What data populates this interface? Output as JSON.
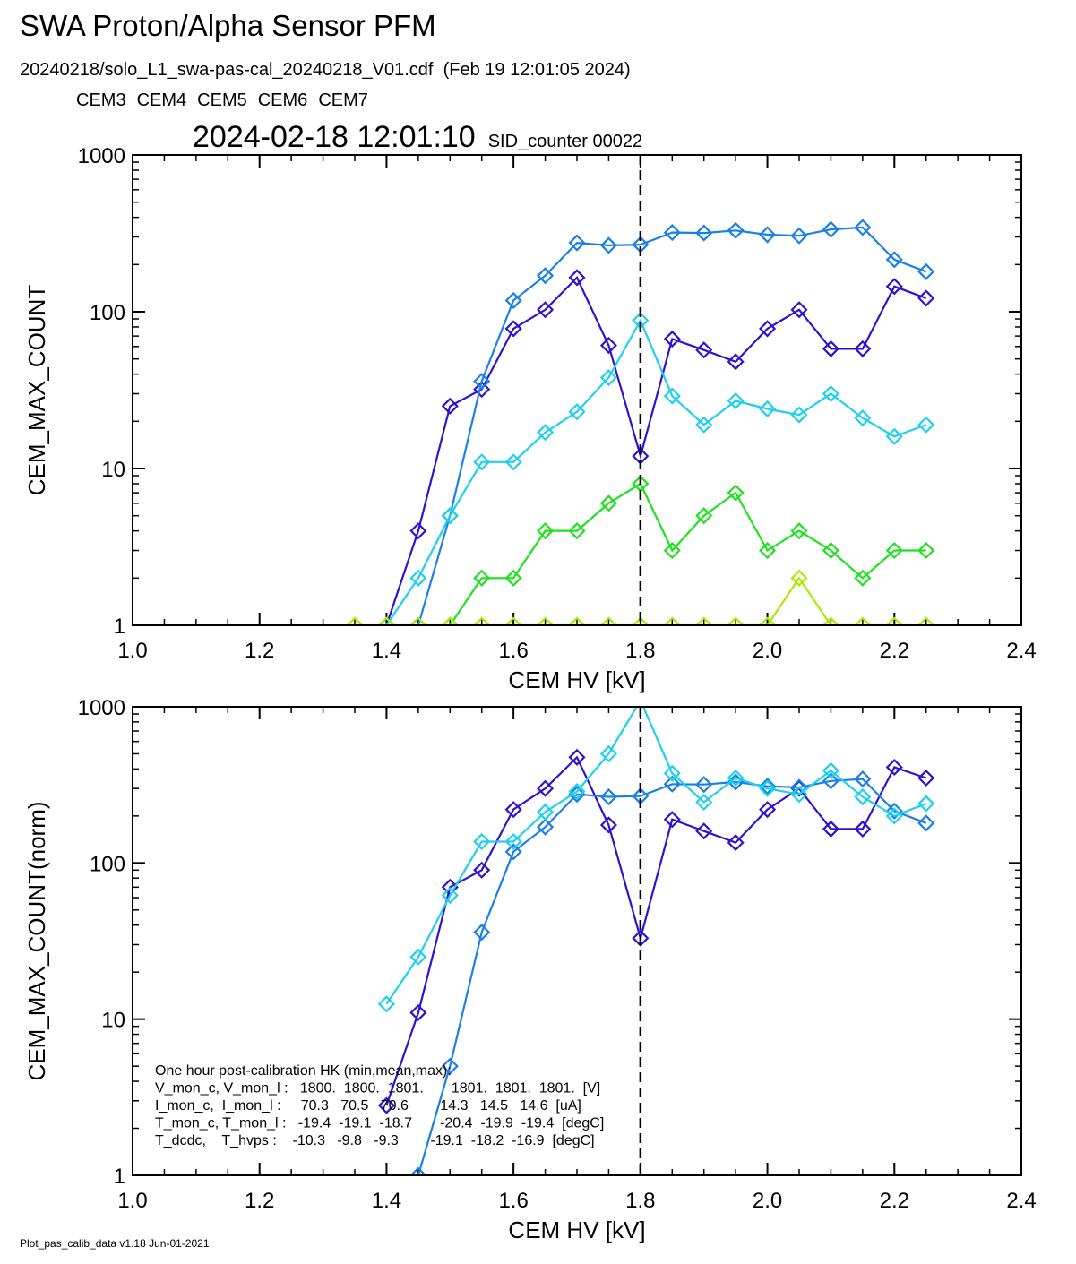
{
  "header": {
    "title": "SWA Proton/Alpha Sensor PFM",
    "subtitle": "20240218/solo_L1_swa-pas-cal_20240218_V01.cdf  (Feb 19 12:01:05 2024)",
    "timestamp": "2024-02-18 12:01:10",
    "counter": "SID_counter 00022",
    "footer": "Plot_pas_calib_data v1.18 Jun-01-2021"
  },
  "chart_data": [
    {
      "type": "line",
      "ylog": true,
      "marker": "diamond",
      "xlabel": "CEM HV [kV]",
      "ylabel": "CEM_MAX_COUNT",
      "x": [
        1.35,
        1.4,
        1.45,
        1.5,
        1.55,
        1.6,
        1.65,
        1.7,
        1.75,
        1.8,
        1.85,
        1.9,
        1.95,
        2.0,
        2.05,
        2.1,
        2.15,
        2.2,
        2.25
      ],
      "xlim": [
        1.0,
        2.4
      ],
      "xticks": [
        {
          "value": 1.0,
          "label": "1.0"
        },
        1.2,
        1.4,
        1.6,
        1.8,
        {
          "value": 2.0,
          "label": "2.0"
        },
        2.2,
        2.4
      ],
      "ylim": [
        1,
        1000
      ],
      "yticks": [
        1,
        10,
        100,
        1000
      ],
      "vline": 1.8,
      "series": [
        {
          "name": "CEM3",
          "color": "#2e12d2",
          "values": [
            null,
            1,
            4,
            25,
            32,
            78,
            103,
            165,
            61,
            12,
            67,
            57,
            48,
            78,
            103,
            58,
            58,
            145,
            122
          ]
        },
        {
          "name": "CEM4",
          "color": "#1a80e8",
          "values": [
            null,
            null,
            1,
            5,
            36,
            118,
            170,
            275,
            265,
            268,
            320,
            318,
            330,
            310,
            305,
            335,
            345,
            215,
            180
          ]
        },
        {
          "name": "CEM5",
          "color": "#1ed0ee",
          "values": [
            null,
            1,
            2,
            5,
            11,
            11,
            17,
            23,
            38,
            88,
            29,
            19,
            27,
            24,
            22,
            30,
            21,
            16,
            19
          ]
        },
        {
          "name": "CEM6",
          "color": "#1ee21e",
          "values": [
            null,
            null,
            null,
            1,
            2,
            2,
            4,
            4,
            6,
            8,
            3,
            5,
            7,
            3,
            4,
            3,
            2,
            3,
            3
          ]
        },
        {
          "name": "CEM7",
          "color": "#a8ea00",
          "values": [
            1,
            1,
            1,
            1,
            1,
            1,
            1,
            1,
            1,
            1,
            1,
            1,
            1,
            1,
            2,
            1,
            1,
            1,
            1
          ]
        }
      ]
    },
    {
      "type": "line",
      "ylog": true,
      "marker": "diamond",
      "xlabel": "CEM HV [kV]",
      "ylabel": "CEM_MAX_COUNT(norm)",
      "x": [
        1.35,
        1.4,
        1.45,
        1.5,
        1.55,
        1.6,
        1.65,
        1.7,
        1.75,
        1.8,
        1.85,
        1.9,
        1.95,
        2.0,
        2.05,
        2.1,
        2.15,
        2.2,
        2.25
      ],
      "xlim": [
        1.0,
        2.4
      ],
      "xticks": [
        {
          "value": 1.0,
          "label": "1.0"
        },
        1.2,
        1.4,
        1.6,
        1.8,
        {
          "value": 2.0,
          "label": "2.0"
        },
        2.2,
        2.4
      ],
      "ylim": [
        1,
        1000
      ],
      "yticks": [
        1,
        10,
        100,
        1000
      ],
      "vline": 1.8,
      "series": [
        {
          "color": "#2e12d2",
          "values": [
            null,
            2.8,
            11,
            70,
            90,
            220,
            300,
            475,
            175,
            33,
            190,
            160,
            135,
            220,
            300,
            165,
            165,
            410,
            350
          ]
        },
        {
          "color": "#1a80e8",
          "values": [
            null,
            null,
            1,
            5,
            36,
            118,
            170,
            275,
            265,
            268,
            320,
            318,
            330,
            310,
            305,
            335,
            345,
            215,
            180
          ]
        },
        {
          "color": "#1ed0ee",
          "values": [
            null,
            12.5,
            25,
            62,
            137,
            137,
            212,
            287,
            500,
            1100,
            375,
            245,
            350,
            300,
            275,
            390,
            265,
            200,
            240
          ]
        }
      ],
      "annotation": [
        "One hour post-calibration HK (min,mean,max):",
        "V_mon_c, V_mon_l :   1800.  1800.  1801.       1801.  1801.  1801.  [V]",
        "I_mon_c,  I_mon_l :     70.3   70.5   70.6        14.3   14.5   14.6  [uA]",
        "T_mon_c, T_mon_l :   -19.4  -19.1  -18.7       -20.4  -19.9  -19.4  [degC]",
        "T_dcdc,    T_hvps :    -10.3   -9.8   -9.3        -19.1  -18.2  -16.9  [degC]"
      ]
    }
  ]
}
